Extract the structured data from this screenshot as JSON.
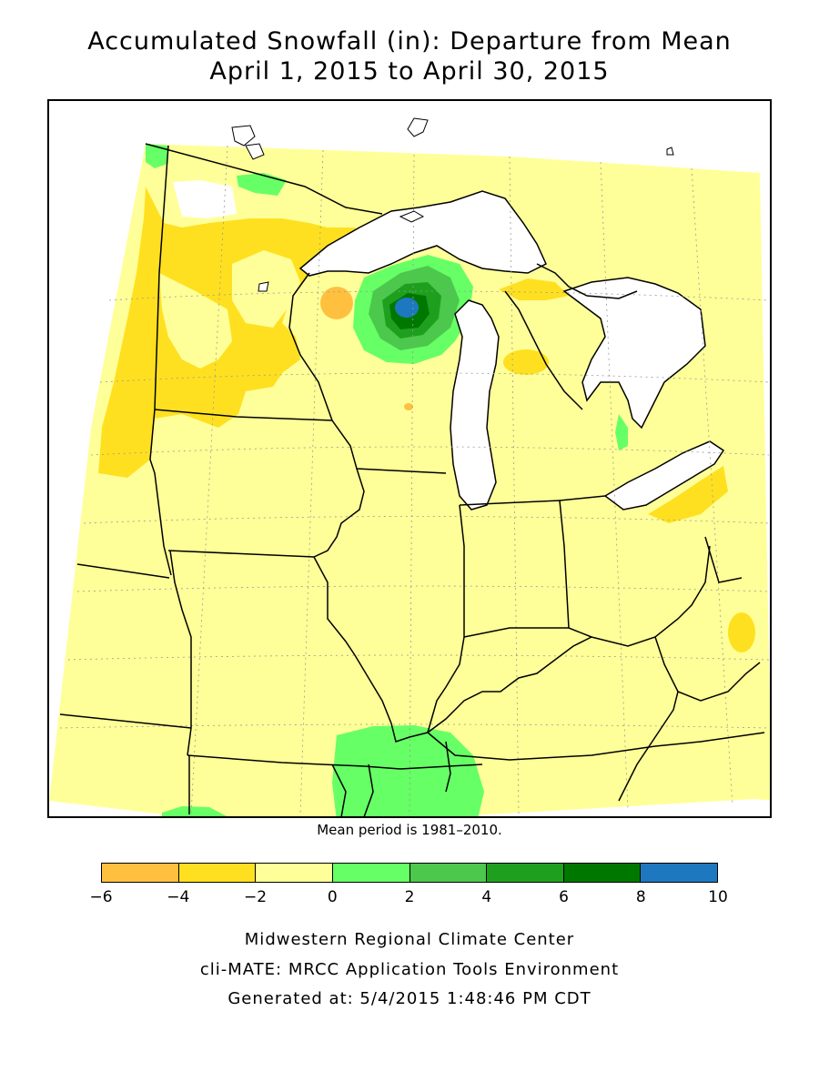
{
  "title": {
    "line1": "Accumulated Snowfall (in): Departure from Mean",
    "line2": "April 1, 2015 to April 30, 2015"
  },
  "mean_period": "Mean period is 1981–2010.",
  "legend": {
    "colors": [
      "#ffc040",
      "#ffe020",
      "#ffff99",
      "#66ff66",
      "#4cc84c",
      "#1ea01e",
      "#007800",
      "#1e78c0"
    ],
    "ticks": [
      "−6",
      "−4",
      "−2",
      "0",
      "2",
      "4",
      "6",
      "8",
      "10"
    ]
  },
  "credits": {
    "line1": "Midwestern Regional Climate Center",
    "line2": "cli-MATE: MRCC Application Tools Environment",
    "line3": "Generated at: 5/4/2015 1:48:46 PM CDT"
  },
  "map": {
    "region": "Upper Midwest / Great Lakes",
    "background_color": "#ffff99",
    "lake_color": "#ffffff"
  }
}
